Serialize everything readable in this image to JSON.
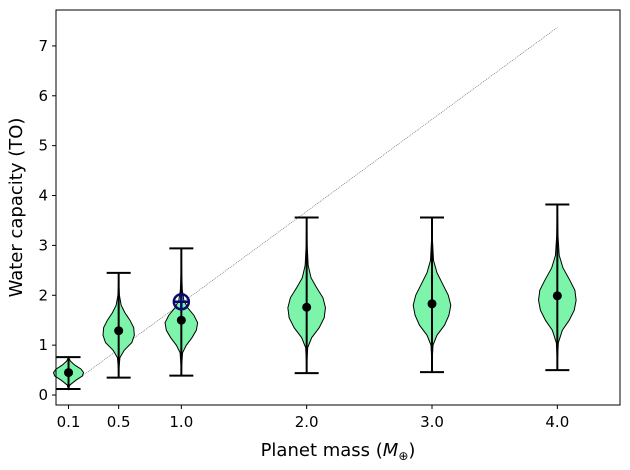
{
  "chart_data": {
    "type": "violin",
    "title": "",
    "xlabel": "Planet mass ($M_\\oplus$)",
    "xlabel_parts": {
      "prefix": "Planet mass (",
      "symbol": "M",
      "subscript": "⊕",
      "suffix": ")"
    },
    "ylabel": "Water capacity (TO)",
    "xlim": [
      0.0,
      4.5
    ],
    "ylim": [
      -0.2,
      7.72
    ],
    "xticks": [
      0.1,
      0.5,
      1.0,
      2.0,
      3.0,
      4.0
    ],
    "xtick_labels": [
      "0.1",
      "0.5",
      "1.0",
      "2.0",
      "3.0",
      "4.0"
    ],
    "yticks": [
      0,
      1,
      2,
      3,
      4,
      5,
      6,
      7
    ],
    "ytick_labels": [
      "0",
      "1",
      "2",
      "3",
      "4",
      "5",
      "6",
      "7"
    ],
    "grid": false,
    "colors": {
      "violin_fill": "#7cf5ab",
      "violin_edge": "#000000",
      "whisker": "#000000",
      "median": "#000000",
      "earth_marker": "#0a0a6e",
      "reference_line": "#555555"
    },
    "violins": [
      {
        "x": 0.1,
        "min": 0.12,
        "max": 0.76,
        "median": 0.45,
        "profile": [
          [
            0.12,
            0
          ],
          [
            0.2,
            0.01
          ],
          [
            0.3,
            0.06
          ],
          [
            0.38,
            0.11
          ],
          [
            0.45,
            0.12
          ],
          [
            0.52,
            0.1
          ],
          [
            0.6,
            0.05
          ],
          [
            0.68,
            0.015
          ],
          [
            0.76,
            0
          ]
        ]
      },
      {
        "x": 0.5,
        "min": 0.35,
        "max": 2.45,
        "median": 1.29,
        "profile": [
          [
            0.35,
            0
          ],
          [
            0.55,
            0.003
          ],
          [
            0.75,
            0.01
          ],
          [
            0.9,
            0.045
          ],
          [
            1.05,
            0.105
          ],
          [
            1.2,
            0.125
          ],
          [
            1.35,
            0.12
          ],
          [
            1.5,
            0.09
          ],
          [
            1.65,
            0.05
          ],
          [
            1.8,
            0.02
          ],
          [
            2.0,
            0.006
          ],
          [
            2.2,
            0.002
          ],
          [
            2.45,
            0
          ]
        ]
      },
      {
        "x": 1.0,
        "min": 0.39,
        "max": 2.94,
        "median": 1.5,
        "profile": [
          [
            0.39,
            0
          ],
          [
            0.6,
            0.003
          ],
          [
            0.85,
            0.01
          ],
          [
            1.0,
            0.04
          ],
          [
            1.15,
            0.085
          ],
          [
            1.3,
            0.12
          ],
          [
            1.45,
            0.13
          ],
          [
            1.6,
            0.1
          ],
          [
            1.75,
            0.05
          ],
          [
            1.9,
            0.02
          ],
          [
            2.1,
            0.008
          ],
          [
            2.4,
            0.003
          ],
          [
            2.94,
            0
          ]
        ]
      },
      {
        "x": 2.0,
        "min": 0.44,
        "max": 3.56,
        "median": 1.76,
        "profile": [
          [
            0.44,
            0
          ],
          [
            0.7,
            0.003
          ],
          [
            0.95,
            0.008
          ],
          [
            1.15,
            0.04
          ],
          [
            1.35,
            0.1
          ],
          [
            1.55,
            0.14
          ],
          [
            1.75,
            0.15
          ],
          [
            1.95,
            0.13
          ],
          [
            2.15,
            0.08
          ],
          [
            2.35,
            0.035
          ],
          [
            2.6,
            0.012
          ],
          [
            3.0,
            0.004
          ],
          [
            3.56,
            0
          ]
        ]
      },
      {
        "x": 3.0,
        "min": 0.46,
        "max": 3.56,
        "median": 1.83,
        "profile": [
          [
            0.46,
            0
          ],
          [
            0.75,
            0.003
          ],
          [
            1.0,
            0.008
          ],
          [
            1.2,
            0.04
          ],
          [
            1.4,
            0.1
          ],
          [
            1.6,
            0.135
          ],
          [
            1.8,
            0.15
          ],
          [
            2.0,
            0.13
          ],
          [
            2.2,
            0.09
          ],
          [
            2.45,
            0.04
          ],
          [
            2.7,
            0.012
          ],
          [
            3.1,
            0.004
          ],
          [
            3.56,
            0
          ]
        ]
      },
      {
        "x": 4.0,
        "min": 0.5,
        "max": 3.82,
        "median": 1.99,
        "profile": [
          [
            0.5,
            0
          ],
          [
            0.8,
            0.003
          ],
          [
            1.05,
            0.008
          ],
          [
            1.3,
            0.04
          ],
          [
            1.5,
            0.095
          ],
          [
            1.7,
            0.135
          ],
          [
            1.9,
            0.15
          ],
          [
            2.1,
            0.14
          ],
          [
            2.3,
            0.1
          ],
          [
            2.55,
            0.045
          ],
          [
            2.8,
            0.015
          ],
          [
            3.2,
            0.005
          ],
          [
            3.82,
            0
          ]
        ]
      }
    ],
    "earth_marker": {
      "x": 1.0,
      "y": 1.87
    },
    "reference_line": {
      "x": [
        0.1,
        4.0
      ],
      "y": [
        0.18,
        7.37
      ]
    }
  }
}
